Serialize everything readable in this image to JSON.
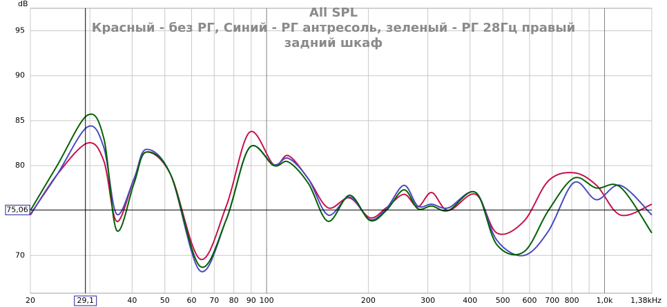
{
  "chart_data": {
    "type": "line",
    "title": "All SPL",
    "subtitle": "Красный - без РГ, Синий - РГ антресоль, зеленый - РГ 28Гц правый задний шкаф",
    "y_label": "dB",
    "log_x": true,
    "grid": true,
    "xlim": [
      20,
      1380
    ],
    "ylim": [
      65.8,
      97.5
    ],
    "xticks": [
      20,
      40,
      50,
      60,
      70,
      80,
      90,
      100,
      200,
      300,
      400,
      500,
      600,
      700,
      800,
      {
        "value": 1000,
        "label": "1,0k"
      },
      {
        "value": 1380,
        "label": "1,38kHz"
      }
    ],
    "xgrid_minor": [
      30,
      900
    ],
    "yticks": [
      70,
      80,
      85,
      90,
      95
    ],
    "cursor": {
      "x": {
        "value": 29.1,
        "label": "29,1"
      },
      "y": {
        "value": 75.06,
        "label": "75,06"
      }
    },
    "x": [
      20,
      24,
      29.5,
      33,
      36,
      40.5,
      44,
      52,
      63.5,
      76,
      89,
      105,
      116,
      133,
      152,
      176,
      202,
      226,
      255,
      280,
      308,
      345,
      416,
      480,
      577,
      682,
      811,
      947,
      1114,
      1380
    ],
    "series": [
      {
        "name": "Красный",
        "color": "#c8104c",
        "values": [
          74.5,
          79,
          82.5,
          80.5,
          73.8,
          78.5,
          81.5,
          79,
          69.6,
          75.5,
          83.7,
          80.1,
          81.1,
          78.5,
          75.3,
          76.4,
          74.2,
          75.3,
          76.8,
          75.4,
          77,
          75,
          76.8,
          72.5,
          73.8,
          78.3,
          79.2,
          77.8,
          74.5,
          75.7
        ]
      },
      {
        "name": "Синий",
        "color": "#4a4ac0",
        "values": [
          74.6,
          79,
          84.3,
          82,
          74.6,
          78.5,
          81.8,
          79,
          68.3,
          74,
          82,
          80.1,
          80.8,
          78.5,
          74.5,
          76.5,
          74,
          75.2,
          77.8,
          75.5,
          75.7,
          75.3,
          77,
          71.7,
          70,
          72.7,
          78.1,
          76.2,
          77.8,
          74.5
        ]
      },
      {
        "name": "зеленый",
        "color": "#006000",
        "values": [
          75,
          80,
          85.6,
          83,
          72.8,
          78,
          81.5,
          79,
          68.8,
          74,
          82,
          80,
          80.4,
          78,
          73.8,
          76.7,
          73.9,
          75,
          77.3,
          75.2,
          75.5,
          75,
          77,
          71.2,
          70.4,
          75,
          78.6,
          77.5,
          77.6,
          72.5
        ]
      }
    ]
  }
}
